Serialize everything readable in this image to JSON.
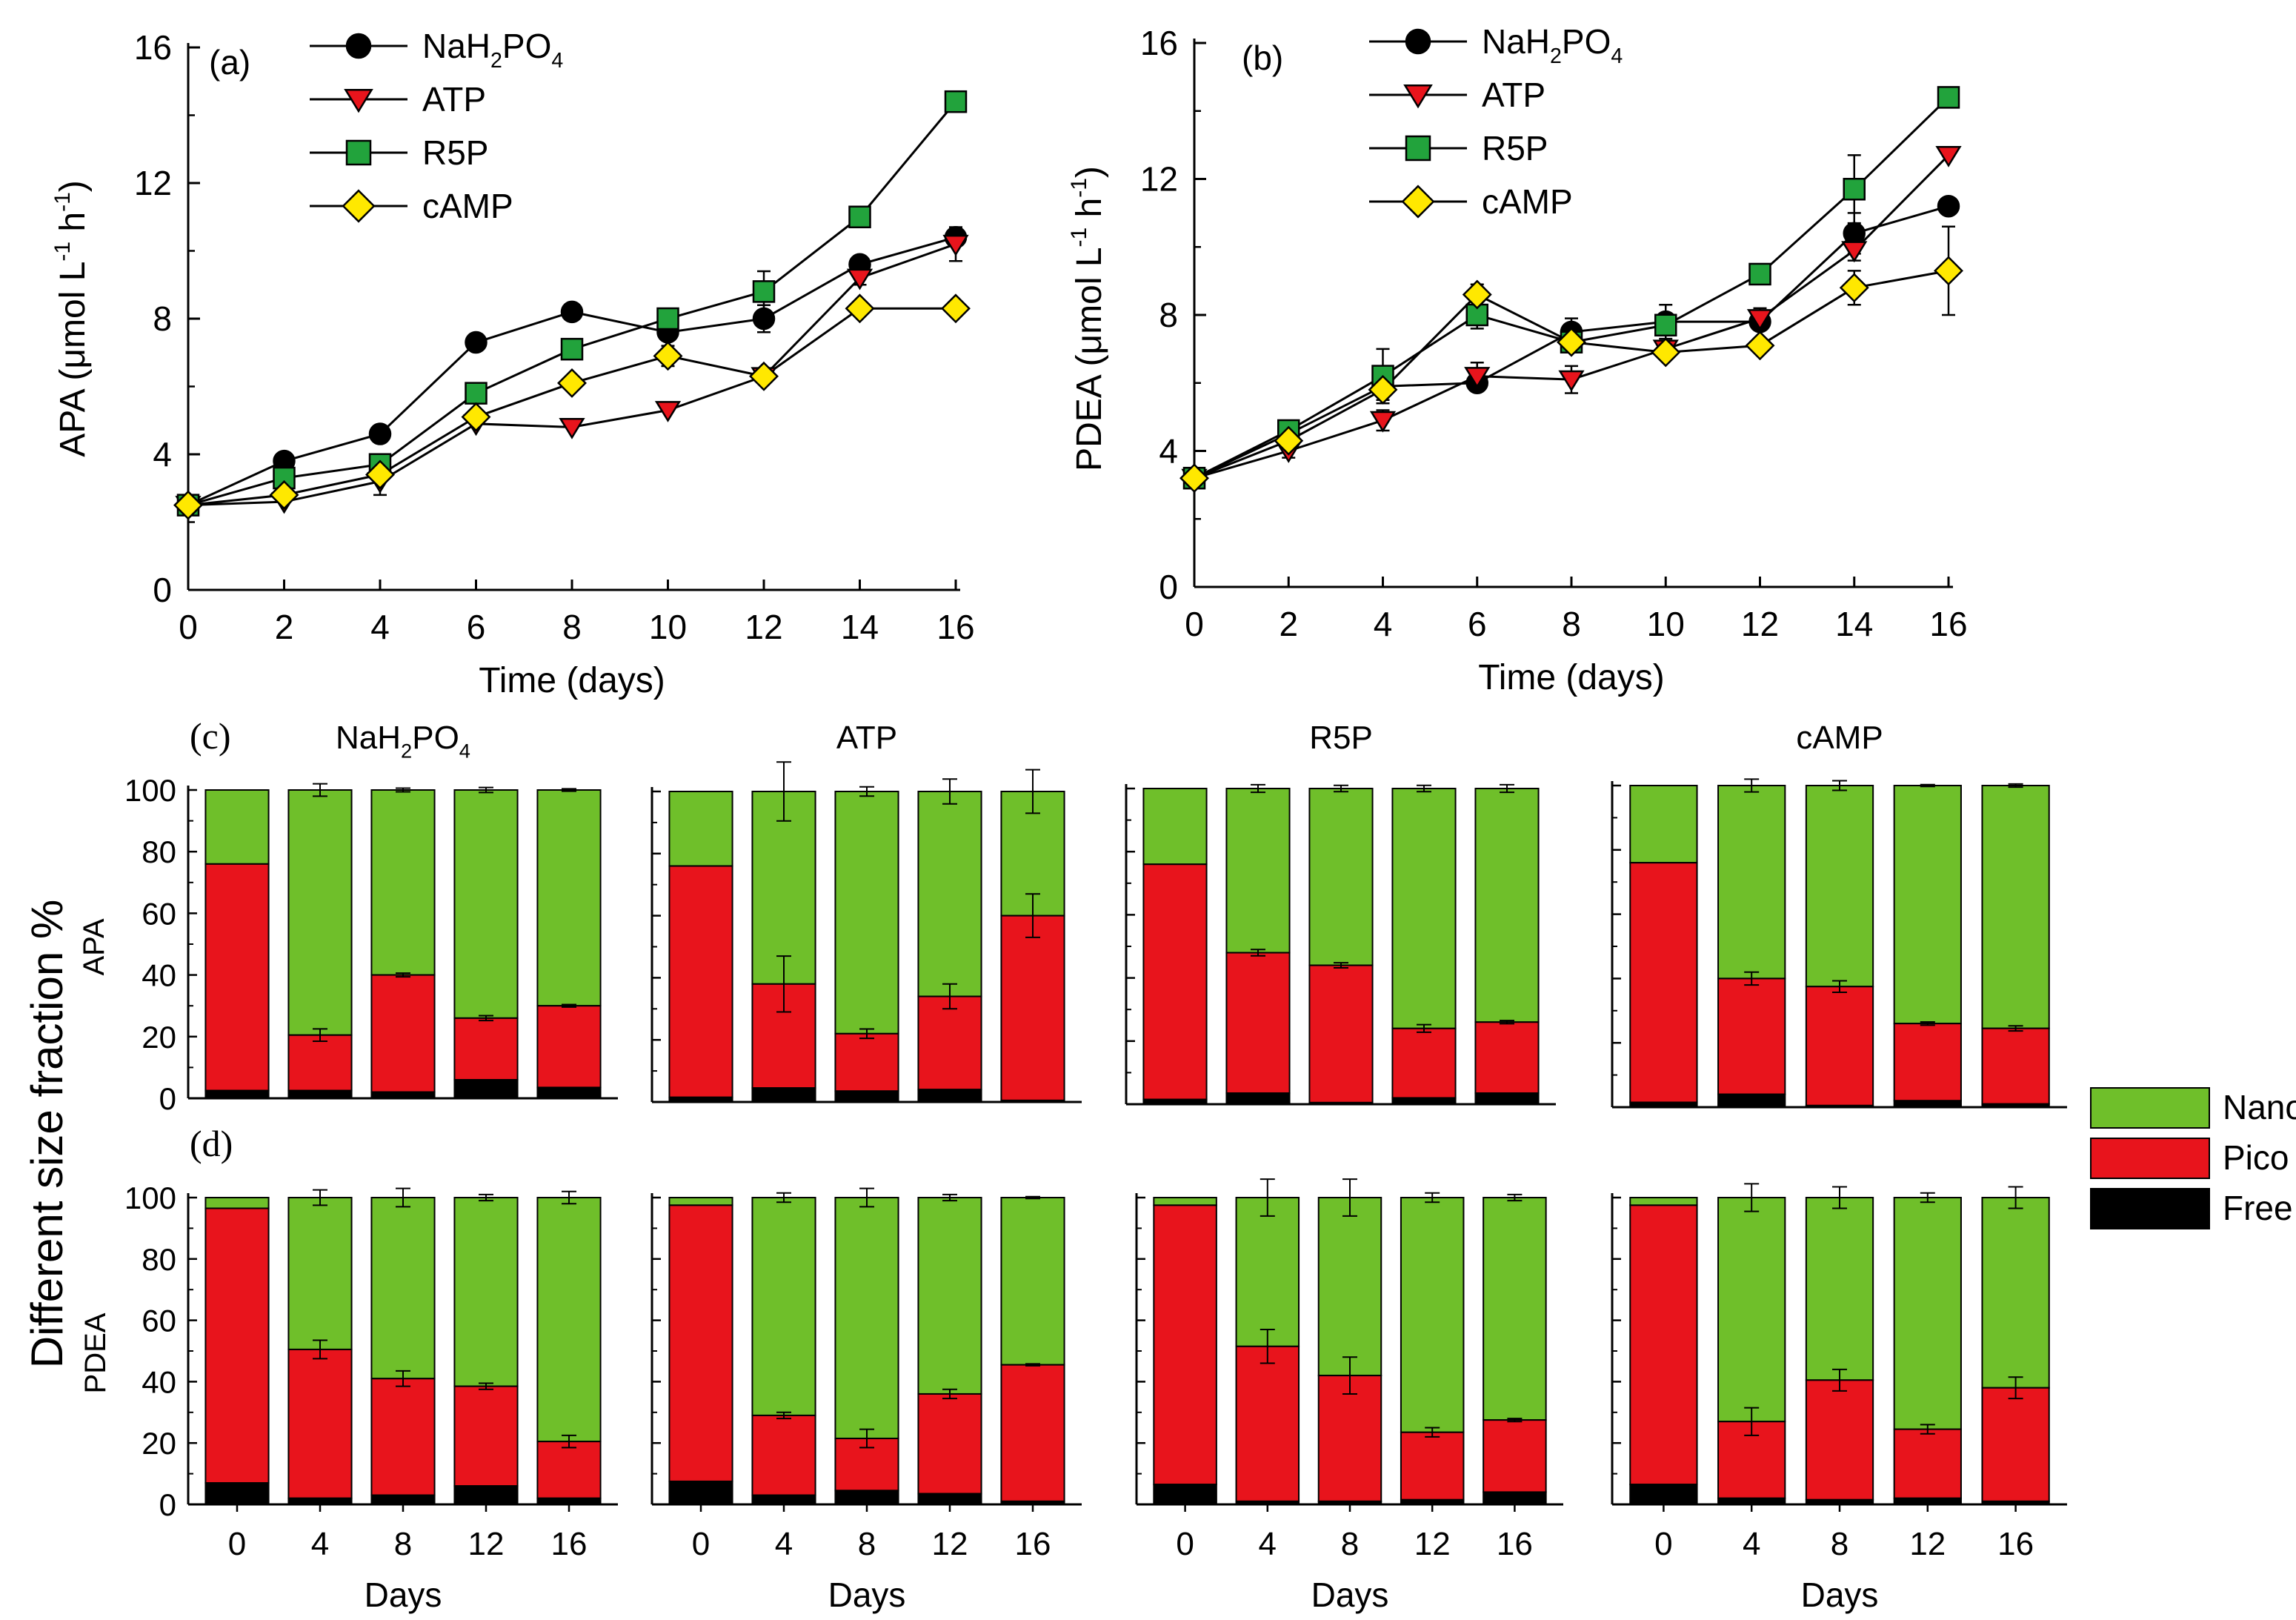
{
  "chart_data": [
    {
      "panel_label": "(a)",
      "type": "line",
      "xlabel": "Time (days)",
      "ylabel_main": "APA (",
      "ylabel_unit": "μmol L",
      "ylabel_exp1": "-1",
      "ylabel_mid": " h",
      "ylabel_exp2": "-1",
      "ylabel_close": ")",
      "xlim": [
        0,
        16
      ],
      "ylim": [
        0,
        16
      ],
      "x_ticks": [
        "0",
        "2",
        "4",
        "6",
        "8",
        "10",
        "12",
        "14",
        "16"
      ],
      "y_ticks": [
        "0",
        "4",
        "8",
        "12",
        "16"
      ],
      "x": [
        0,
        2,
        4,
        6,
        8,
        10,
        12,
        14,
        16
      ],
      "legend_position": "top-left",
      "series": [
        {
          "name_parts": [
            "NaH",
            "2",
            "PO",
            "4"
          ],
          "marker": "circle",
          "color": "#000000",
          "values": [
            2.5,
            3.8,
            4.6,
            7.3,
            8.2,
            7.6,
            8.0,
            9.6,
            10.4
          ],
          "errors": [
            0.1,
            0.1,
            0.1,
            0.1,
            0.1,
            0.2,
            0.4,
            0.1,
            0.2
          ]
        },
        {
          "name_parts": [
            "ATP"
          ],
          "marker": "triangle-down",
          "color": "#e8141c",
          "values": [
            2.5,
            2.6,
            3.2,
            4.9,
            4.8,
            5.3,
            6.3,
            9.2,
            10.2
          ],
          "errors": [
            0.1,
            0.1,
            0.4,
            0.1,
            0.1,
            0.1,
            0.1,
            0.2,
            0.5
          ]
        },
        {
          "name_parts": [
            "R5P"
          ],
          "marker": "square",
          "color": "#22a33c",
          "values": [
            2.5,
            3.3,
            3.7,
            5.8,
            7.1,
            8.0,
            8.8,
            11.0,
            14.4
          ],
          "errors": [
            0.1,
            0.2,
            0.2,
            0.2,
            0.2,
            0.2,
            0.6,
            0.1,
            0.1
          ]
        },
        {
          "name_parts": [
            "cAMP"
          ],
          "marker": "diamond",
          "color": "#ffe800",
          "values": [
            2.5,
            2.8,
            3.4,
            5.1,
            6.1,
            6.9,
            6.3,
            8.3,
            8.3
          ],
          "errors": [
            0.1,
            0.1,
            0.2,
            0.2,
            0.2,
            0.3,
            0.1,
            0.2,
            0.1
          ]
        }
      ]
    },
    {
      "panel_label": "(b)",
      "type": "line",
      "xlabel": "Time (days)",
      "ylabel_main": "PDEA (",
      "ylabel_unit": "μmol L",
      "ylabel_exp1": "-1",
      "ylabel_mid": " h",
      "ylabel_exp2": "-1",
      "ylabel_close": ")",
      "xlim": [
        0,
        16
      ],
      "ylim": [
        0,
        16
      ],
      "x_ticks": [
        "0",
        "2",
        "4",
        "6",
        "8",
        "10",
        "12",
        "14",
        "16"
      ],
      "y_ticks": [
        "0",
        "4",
        "8",
        "12",
        "16"
      ],
      "x": [
        0,
        2,
        4,
        6,
        8,
        10,
        12,
        14,
        16
      ],
      "legend_position": "top-left",
      "series": [
        {
          "name_parts": [
            "NaH",
            "2",
            "PO",
            "4"
          ],
          "marker": "circle",
          "color": "#000000",
          "values": [
            3.2,
            4.5,
            5.9,
            6.0,
            7.5,
            7.8,
            7.8,
            10.4,
            11.2
          ],
          "errors": [
            0.1,
            0.1,
            0.3,
            0.2,
            0.4,
            0.5,
            0.2,
            0.6,
            0.2
          ]
        },
        {
          "name_parts": [
            "ATP"
          ],
          "marker": "triangle-down",
          "color": "#e8141c",
          "values": [
            3.2,
            4.0,
            4.9,
            6.2,
            6.1,
            7.0,
            7.9,
            9.9,
            12.7
          ],
          "errors": [
            0.1,
            0.2,
            0.3,
            0.4,
            0.4,
            0.2,
            0.3,
            0.3,
            0.1
          ]
        },
        {
          "name_parts": [
            "R5P"
          ],
          "marker": "square",
          "color": "#22a33c",
          "values": [
            3.2,
            4.6,
            6.2,
            8.0,
            7.2,
            7.7,
            9.2,
            11.7,
            14.4
          ],
          "errors": [
            0.1,
            0.1,
            0.8,
            0.4,
            0.2,
            0.3,
            0.1,
            1.0,
            0.1
          ]
        },
        {
          "name_parts": [
            "cAMP"
          ],
          "marker": "diamond",
          "color": "#ffe800",
          "values": [
            3.2,
            4.3,
            5.8,
            8.6,
            7.2,
            6.9,
            7.1,
            8.8,
            9.3
          ],
          "errors": [
            0.1,
            0.1,
            0.3,
            0.3,
            0.3,
            0.2,
            0.2,
            0.5,
            1.3
          ]
        }
      ]
    },
    {
      "panel_label": "(c)",
      "type": "bar",
      "stacked": true,
      "row_label": "APA",
      "categories": [
        "0",
        "4",
        "8",
        "12",
        "16"
      ],
      "ylim": [
        0,
        100
      ],
      "y_ticks": [
        "0",
        "20",
        "40",
        "60",
        "80",
        "100"
      ],
      "groups": [
        {
          "title_parts": [
            "NaH",
            "2",
            "PO",
            "4"
          ],
          "free": [
            2.5,
            2.5,
            2.0,
            6.0,
            3.5
          ],
          "pico_top": [
            76.0,
            20.5,
            40.0,
            26.0,
            30.0
          ],
          "total": [
            100,
            100,
            100,
            100,
            100
          ],
          "pico_err": [
            0,
            2.0,
            0.6,
            0.8,
            0.4
          ],
          "total_err": [
            0,
            2.0,
            0.6,
            0.8,
            0.4
          ]
        },
        {
          "title_parts": [
            "ATP"
          ],
          "free": [
            1.5,
            4.5,
            3.5,
            4.0,
            0.5
          ],
          "pico_top": [
            76.0,
            38.0,
            22.0,
            34.0,
            60.0
          ],
          "total": [
            100,
            100,
            100,
            100,
            100
          ],
          "pico_err": [
            0,
            9.0,
            1.5,
            4.0,
            7.0
          ],
          "total_err": [
            0,
            9.5,
            1.5,
            4.0,
            7.0
          ]
        },
        {
          "title_parts": [
            "R5P"
          ],
          "free": [
            1.5,
            3.5,
            0.5,
            2.0,
            3.5
          ],
          "pico_top": [
            76.0,
            48.0,
            44.0,
            24.0,
            26.0
          ],
          "total": [
            100,
            100,
            100,
            100,
            100
          ],
          "pico_err": [
            0,
            1.0,
            0.8,
            1.2,
            0.5
          ],
          "total_err": [
            0,
            1.2,
            1.0,
            1.0,
            1.2
          ]
        },
        {
          "title_parts": [
            "cAMP"
          ],
          "free": [
            1.5,
            4.0,
            0.5,
            2.0,
            1.0
          ],
          "pico_top": [
            76.0,
            40.0,
            37.5,
            26.0,
            24.5
          ],
          "total": [
            100,
            100,
            100,
            100,
            100
          ],
          "pico_err": [
            0,
            2.0,
            1.8,
            0.5,
            0.8
          ],
          "total_err": [
            0,
            2.0,
            1.5,
            0.3,
            0.5
          ]
        }
      ]
    },
    {
      "panel_label": "(d)",
      "type": "bar",
      "stacked": true,
      "row_label": "PDEA",
      "categories": [
        "0",
        "4",
        "8",
        "12",
        "16"
      ],
      "ylim": [
        0,
        100
      ],
      "y_ticks": [
        "0",
        "20",
        "40",
        "60",
        "80",
        "100"
      ],
      "xlabel": "Days",
      "groups": [
        {
          "title_parts": [
            "NaH",
            "2",
            "PO",
            "4"
          ],
          "free": [
            7.0,
            2.0,
            3.0,
            6.0,
            2.0
          ],
          "pico_top": [
            96.5,
            50.5,
            41.0,
            38.5,
            20.5
          ],
          "total": [
            100,
            100,
            100,
            100,
            100
          ],
          "pico_err": [
            0,
            3.0,
            2.5,
            1.0,
            2.0
          ],
          "total_err": [
            0,
            2.5,
            3.0,
            1.0,
            2.0
          ]
        },
        {
          "title_parts": [
            "ATP"
          ],
          "free": [
            7.5,
            3.0,
            4.5,
            3.5,
            1.0
          ],
          "pico_top": [
            97.5,
            29.0,
            21.5,
            36.0,
            45.5
          ],
          "total": [
            100,
            100,
            100,
            100,
            100
          ],
          "pico_err": [
            0,
            1.0,
            3.0,
            1.5,
            0.3
          ],
          "total_err": [
            0,
            1.5,
            3.0,
            1.0,
            0.3
          ]
        },
        {
          "title_parts": [
            "R5P"
          ],
          "free": [
            6.5,
            1.0,
            1.0,
            1.5,
            4.0
          ],
          "pico_top": [
            97.5,
            51.5,
            42.0,
            23.5,
            27.5
          ],
          "total": [
            100,
            100,
            100,
            100,
            100
          ],
          "pico_err": [
            0,
            5.5,
            6.0,
            1.5,
            0.5
          ],
          "total_err": [
            0,
            6.0,
            6.0,
            1.5,
            1.0
          ]
        },
        {
          "title_parts": [
            "cAMP"
          ],
          "free": [
            6.5,
            2.0,
            1.5,
            2.0,
            1.0
          ],
          "pico_top": [
            97.5,
            27.0,
            40.5,
            24.5,
            38.0
          ],
          "total": [
            100,
            100,
            100,
            100,
            100
          ],
          "pico_err": [
            0,
            4.5,
            3.5,
            1.5,
            3.5
          ],
          "total_err": [
            0,
            4.5,
            3.5,
            1.5,
            3.5
          ]
        }
      ]
    }
  ],
  "shared": {
    "y_axis_title": "Different size fraction %",
    "bar_legend": [
      {
        "name": "Nano",
        "color": "#6fbf2a"
      },
      {
        "name": "Pico",
        "color": "#e8141c"
      },
      {
        "name": "Free",
        "color": "#000000"
      }
    ]
  }
}
